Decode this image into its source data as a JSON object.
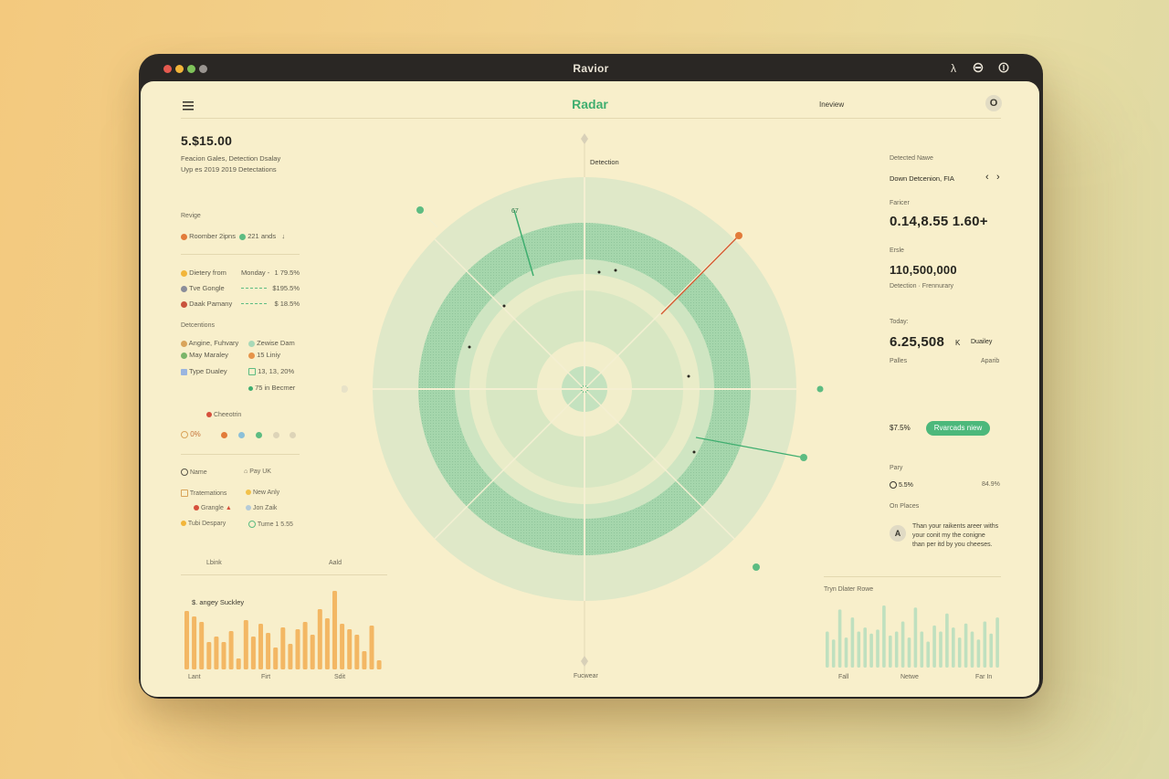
{
  "window": {
    "title": "Ravior",
    "traffic_lights": [
      "#e65a4f",
      "#f2b53a",
      "#7fc35a",
      "#9a9590"
    ],
    "title_icons": [
      "lambda-icon",
      "record-icon",
      "info-icon"
    ]
  },
  "header": {
    "menu_icon": "hamburger-icon",
    "title": "Radar",
    "link": "Ineview",
    "avatar": "O"
  },
  "left": {
    "balance": "5.$15.00",
    "sub1": "Feacion Gales,   Detection   Dsalay",
    "sub2": "Uyp es 2019 2019   Detectations",
    "section_revige": "Revige",
    "legend": {
      "item1": "Roomber 2ipns",
      "item2": "221 ands",
      "arrow": "↓"
    },
    "rows": [
      {
        "label": "Dietery from",
        "mid": "Monday -",
        "value": "1 79.5%"
      },
      {
        "label": "Tve Gongle",
        "mid": "",
        "value": "$195.5%"
      },
      {
        "label": "Daak Pamany",
        "mid": "",
        "value": "$ 18.5%"
      }
    ],
    "section_detections": "Detcentions",
    "det_grid": [
      {
        "left": "Angine, Fuhvary",
        "right": "Zewise Dam"
      },
      {
        "left": "May Maraley",
        "right": "15 Liniy"
      },
      {
        "left": "Type Dualey",
        "right": "13, 13, 20%"
      },
      {
        "left": "",
        "right": "75 in Becmer"
      }
    ],
    "checkin": "Cheeotrin",
    "percent": "0%",
    "list": [
      {
        "left": "Name",
        "right": "Pay UK"
      },
      {
        "left": "Tratemations",
        "right": "New Anly"
      },
      {
        "left": "Grangle",
        "right": "Jon Zaik"
      },
      {
        "left": "Tubi Despary",
        "right": "Tume 1 5.55"
      }
    ],
    "chart_header_left": "Lbink",
    "chart_header_right": "Aald",
    "chart_title": "$. angey Suckley",
    "chart_xlabels": [
      "Lant",
      "Firt",
      "Sdit"
    ]
  },
  "center": {
    "top_label": "Detection",
    "blip_label": "67",
    "bottom_label": "Fucwear"
  },
  "right": {
    "detected_label": "Detected Nawe",
    "nav_text": "Down Detcenion,  FIA",
    "prev": "‹",
    "next": "›",
    "farcer_label": "Faricer",
    "farcer_value": "0.14,8.55 1.60+",
    "ersle_label": "Ersle",
    "ersle_value": "110,500,000",
    "det_line": "Detection  ·  Frennurary",
    "today_label": "Today:",
    "today_value": "6.25,508",
    "today_k": "K",
    "today_suffix": "Duailey",
    "palles": "Palles",
    "aparib": "Aparib",
    "pct": "$7.5%",
    "button": "Rvarcads niew",
    "pary": "Pary",
    "pary_left": "5.5%",
    "pary_right": "84.9%",
    "places": "On Places",
    "avatar": "A",
    "message": [
      "Than your raikents areer withs",
      "your conit my the conigne",
      "than per itd by you cheeses."
    ],
    "chart_title": "Tryn Dlater Rowe",
    "chart_xlabels": [
      "Fall",
      "Netwe",
      "Far In"
    ]
  },
  "chart_data": [
    {
      "type": "bar",
      "title": "$. angey Suckley",
      "xlabels": [
        "Lant",
        "Firt",
        "Sdit"
      ],
      "values": [
        64,
        58,
        52,
        30,
        36,
        30,
        42,
        12,
        54,
        36,
        50,
        40,
        24,
        46,
        28,
        44,
        52,
        38,
        66,
        56,
        86,
        50,
        44,
        38,
        20,
        48,
        10
      ],
      "color": "#f3b764"
    },
    {
      "type": "bar",
      "title": "Tryn Dlater Rowe",
      "xlabels": [
        "Fall",
        "Netwe",
        "Far In"
      ],
      "values": [
        36,
        28,
        58,
        30,
        50,
        36,
        40,
        34,
        38,
        62,
        32,
        36,
        46,
        30,
        60,
        36,
        26,
        42,
        36,
        54,
        40,
        30,
        44,
        36,
        28,
        46,
        34,
        50
      ],
      "color": "#bfe0bf"
    }
  ]
}
